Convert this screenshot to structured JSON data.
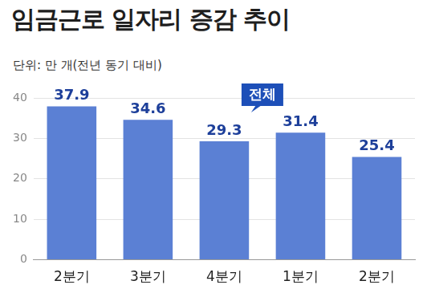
{
  "chart_data": {
    "type": "bar",
    "title": "임금근로 일자리 증감 추이",
    "subtitle": "단위: 만 개(전년 동기 대비)",
    "annotation": "전체",
    "categories": [
      "2분기",
      "3분기",
      "4분기",
      "1분기",
      "2분기"
    ],
    "values": [
      37.9,
      34.6,
      29.3,
      31.4,
      25.4
    ],
    "color": "#5b80d4",
    "ylim": [
      0,
      40
    ],
    "yticks": [
      0,
      10,
      20,
      30,
      40
    ],
    "grid": true,
    "data_labels": true
  }
}
